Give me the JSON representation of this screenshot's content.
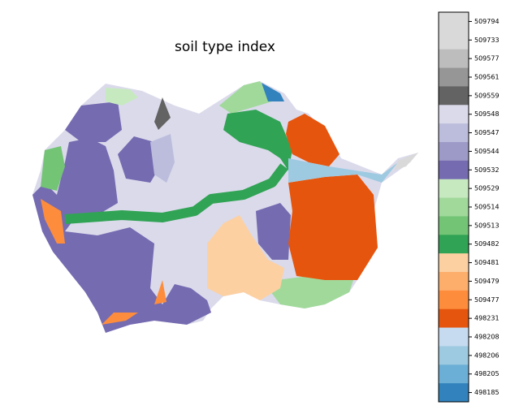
{
  "title": "soil type index",
  "colorbar": {
    "labels": [
      509794,
      509733,
      509577,
      509561,
      509559,
      509548,
      509547,
      509544,
      509532,
      509529,
      509514,
      509513,
      509482,
      509481,
      509479,
      509477,
      498231,
      498208,
      498206,
      498205,
      498185
    ],
    "colors": [
      "#d9d9d9",
      "#d9d9d9",
      "#bdbdbd",
      "#969696",
      "#636363",
      "#dadaeb",
      "#bcbddc",
      "#9e9ac8",
      "#756bb1",
      "#c7e9c0",
      "#a1d99b",
      "#74c476",
      "#31a354",
      "#fdd0a2",
      "#fdae6b",
      "#fd8d3c",
      "#e6550d",
      "#c6dbef",
      "#9ecae1",
      "#6baed6",
      "#3182bd"
    ]
  }
}
